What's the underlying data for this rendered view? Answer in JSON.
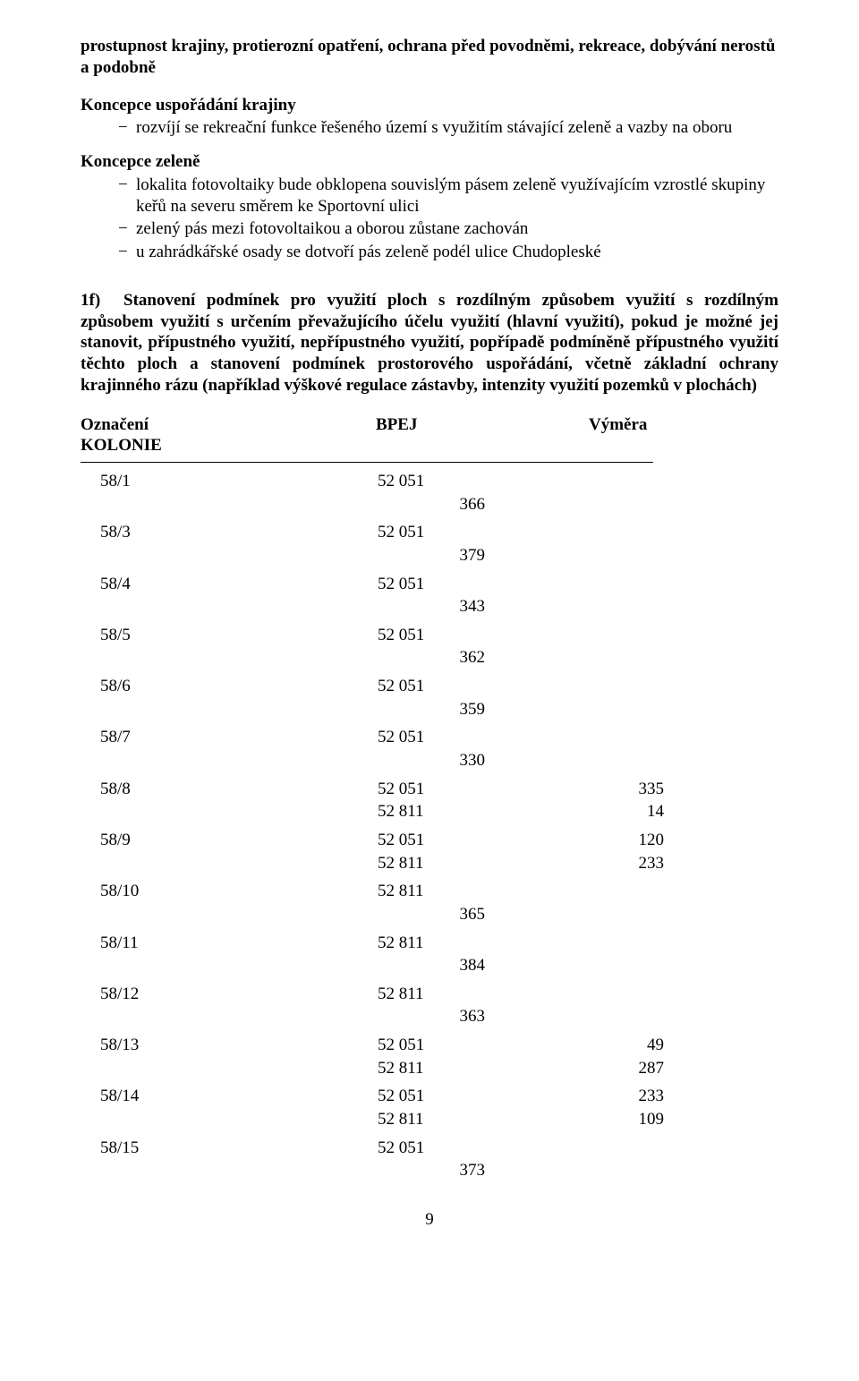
{
  "intro": "prostupnost krajiny, protierozní opatření, ochrana před povodněmi, rekreace, dobývání nerostů a podobně",
  "section_a": {
    "heading": "Koncepce uspořádání krajiny",
    "items": [
      "rozvíjí se rekreační funkce řešeného území s využitím stávající zeleně a vazby na oboru"
    ]
  },
  "section_b": {
    "heading": "Koncepce zeleně",
    "items": [
      "lokalita fotovoltaiky bude obklopena souvislým pásem zeleně využívajícím vzrostlé skupiny keřů na severu směrem ke Sportovní ulici",
      "zelený pás mezi fotovoltaikou a oborou zůstane zachován",
      "u zahrádkářské osady se dotvoří pás zeleně podél ulice Chudopleské"
    ]
  },
  "main": {
    "label": "1f)",
    "text": "Stanovení podmínek pro využití ploch s rozdílným způsobem využití s rozdílným způsobem využití s určením převažujícího účelu využití (hlavní využití), pokud je možné jej stanovit, přípustného využití, nepřípustného využití, popřípadě podmíněně přípustného využití těchto ploch a stanovení podmínek prostorového uspořádání, včetně základní ochrany krajinného rázu (například výškové regulace zástavby, intenzity využití pozemků v plochách)"
  },
  "table": {
    "header": {
      "c1": "Označení",
      "c2": "BPEJ",
      "c3": "Výměra"
    },
    "subheader": "KOLONIE",
    "rows": [
      {
        "c1": "58/1",
        "cells": [
          {
            "c2": "52 051",
            "c3": "366"
          }
        ]
      },
      {
        "c1": "58/3",
        "cells": [
          {
            "c2": "52 051",
            "c3": "379"
          }
        ]
      },
      {
        "c1": "58/4",
        "cells": [
          {
            "c2": "52 051",
            "c3": "343"
          }
        ]
      },
      {
        "c1": "58/5",
        "cells": [
          {
            "c2": "52 051",
            "c3": "362"
          }
        ]
      },
      {
        "c1": "58/6",
        "cells": [
          {
            "c2": "52 051",
            "c3": "359"
          }
        ]
      },
      {
        "c1": "58/7",
        "cells": [
          {
            "c2": "52 051",
            "c3": "330"
          }
        ]
      },
      {
        "c1": "58/8",
        "cells": [
          {
            "c2": "52 051",
            "c3": "335"
          },
          {
            "c2": "52 811",
            "c3": "14"
          }
        ]
      },
      {
        "c1": "58/9",
        "cells": [
          {
            "c2": "52 051",
            "c3": "120"
          },
          {
            "c2": "52 811",
            "c3": "233"
          }
        ]
      },
      {
        "c1": "58/10",
        "cells": [
          {
            "c2": "52 811",
            "c3": "365"
          }
        ]
      },
      {
        "c1": "58/11",
        "cells": [
          {
            "c2": "52 811",
            "c3": "384"
          }
        ]
      },
      {
        "c1": "58/12",
        "cells": [
          {
            "c2": "52 811",
            "c3": "363"
          }
        ]
      },
      {
        "c1": "58/13",
        "cells": [
          {
            "c2": "52 051",
            "c3": "49"
          },
          {
            "c2": "52 811",
            "c3": "287"
          }
        ]
      },
      {
        "c1": "58/14",
        "cells": [
          {
            "c2": "52 051",
            "c3": "233"
          },
          {
            "c2": "52 811",
            "c3": "109"
          }
        ]
      },
      {
        "c1": "58/15",
        "cells": [
          {
            "c2": "52 051",
            "c3": "373"
          }
        ]
      }
    ]
  },
  "page_number": "9"
}
